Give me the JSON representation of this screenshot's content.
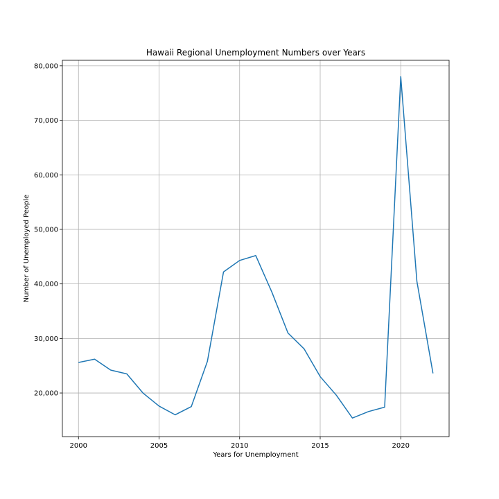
{
  "chart_data": {
    "type": "line",
    "title": "Hawaii Regional Unemployment Numbers over Years",
    "xlabel": "Years for Unemployment",
    "ylabel": "Number of Unemployed People",
    "xlim": [
      1999,
      2023
    ],
    "ylim": [
      12000,
      81000
    ],
    "x_ticks": [
      2000,
      2005,
      2010,
      2015,
      2020
    ],
    "x_tick_labels": [
      "2000",
      "2005",
      "2010",
      "2015",
      "2020"
    ],
    "y_ticks": [
      20000,
      30000,
      40000,
      50000,
      60000,
      70000,
      80000
    ],
    "y_tick_labels": [
      "20,000",
      "30,000",
      "40,000",
      "50,000",
      "60,000",
      "70,000",
      "80,000"
    ],
    "grid": true,
    "series": [
      {
        "color": "#1f77b4",
        "x": [
          2000,
          2001,
          2002,
          2003,
          2004,
          2005,
          2006,
          2007,
          2008,
          2009,
          2010,
          2011,
          2012,
          2013,
          2014,
          2015,
          2016,
          2017,
          2018,
          2019,
          2020,
          2021,
          2022
        ],
        "values": [
          25600,
          26200,
          24200,
          23500,
          20000,
          17600,
          16000,
          17500,
          25800,
          42200,
          44300,
          45200,
          38500,
          31000,
          28100,
          23000,
          19600,
          15400,
          16600,
          17400,
          78000,
          40500,
          23600
        ]
      }
    ]
  }
}
